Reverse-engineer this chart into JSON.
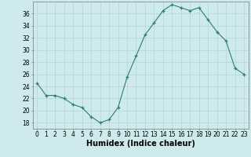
{
  "x": [
    0,
    1,
    2,
    3,
    4,
    5,
    6,
    7,
    8,
    9,
    10,
    11,
    12,
    13,
    14,
    15,
    16,
    17,
    18,
    19,
    20,
    21,
    22,
    23
  ],
  "y": [
    24.5,
    22.5,
    22.5,
    22.0,
    21.0,
    20.5,
    19.0,
    18.0,
    18.5,
    20.5,
    25.5,
    29.0,
    32.5,
    34.5,
    36.5,
    37.5,
    37.0,
    36.5,
    37.0,
    35.0,
    33.0,
    31.5,
    27.0,
    26.0
  ],
  "xlabel": "Humidex (Indice chaleur)",
  "ylim": [
    17,
    38
  ],
  "xlim": [
    -0.5,
    23.5
  ],
  "yticks": [
    18,
    20,
    22,
    24,
    26,
    28,
    30,
    32,
    34,
    36
  ],
  "xticks": [
    0,
    1,
    2,
    3,
    4,
    5,
    6,
    7,
    8,
    9,
    10,
    11,
    12,
    13,
    14,
    15,
    16,
    17,
    18,
    19,
    20,
    21,
    22,
    23
  ],
  "xtick_labels": [
    "0",
    "1",
    "2",
    "3",
    "4",
    "5",
    "6",
    "7",
    "8",
    "9",
    "10",
    "11",
    "12",
    "13",
    "14",
    "15",
    "16",
    "17",
    "18",
    "19",
    "20",
    "21",
    "22",
    "23"
  ],
  "line_color": "#2e7d6e",
  "marker": "+",
  "bg_color": "#ceeaed",
  "grid_color": "#b8d8db",
  "tick_fontsize": 5.5,
  "xlabel_fontsize": 7
}
